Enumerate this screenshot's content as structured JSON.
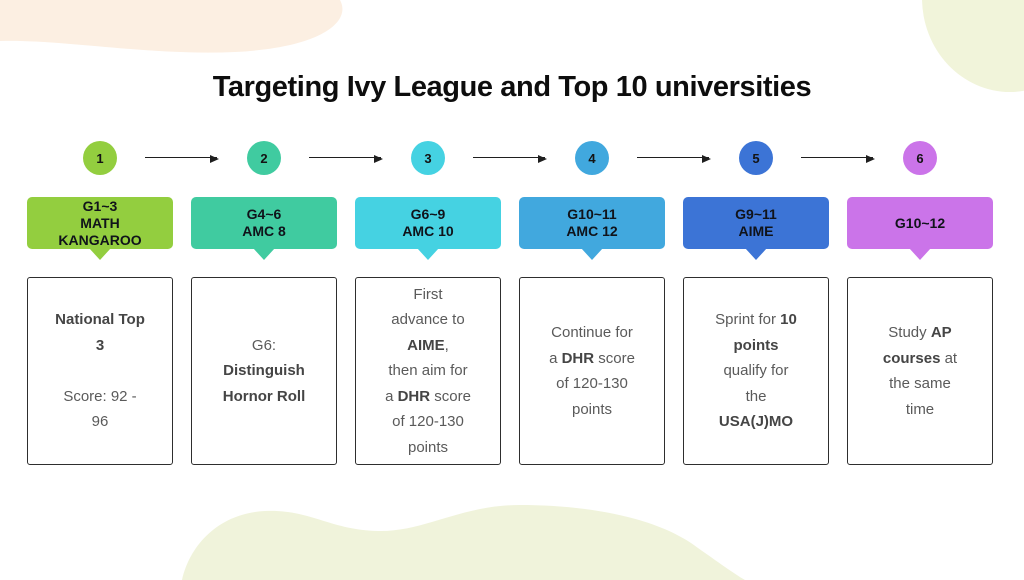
{
  "title": "Targeting Ivy League and Top 10 universities",
  "decor": {
    "blob_cream_top_left": "#FCEFE2",
    "blob_green_top_right": "#F1F4DA",
    "blob_green_bottom": "#F0F3DB"
  },
  "steps": [
    {
      "number": "1",
      "color": "#93CE3F",
      "header": "G1~3\nMATH\nKANGAROO",
      "desc": [
        {
          "t": "National Top\n3",
          "b": true
        },
        {
          "t": "\n\nScore: 92 -\n96",
          "b": false
        }
      ]
    },
    {
      "number": "2",
      "color": "#40CBA0",
      "header": "G4~6\nAMC 8",
      "desc": [
        {
          "t": "G6:\n",
          "b": false
        },
        {
          "t": "Distinguish\nHornor Roll",
          "b": true
        }
      ]
    },
    {
      "number": "3",
      "color": "#45D2E2",
      "header": "G6~9\nAMC 10",
      "desc": [
        {
          "t": "First\nadvance to\n",
          "b": false
        },
        {
          "t": "AIME",
          "b": true
        },
        {
          "t": ",\nthen aim for\na ",
          "b": false
        },
        {
          "t": "DHR",
          "b": true
        },
        {
          "t": " score\nof 120-130\npoints",
          "b": false
        }
      ]
    },
    {
      "number": "4",
      "color": "#41A8DE",
      "header": "G10~11\nAMC 12",
      "desc": [
        {
          "t": "Continue for\na ",
          "b": false
        },
        {
          "t": "DHR",
          "b": true
        },
        {
          "t": " score\nof 120-130\npoints",
          "b": false
        }
      ]
    },
    {
      "number": "5",
      "color": "#3C74D6",
      "header": "G9~11\nAIME",
      "desc": [
        {
          "t": "Sprint for ",
          "b": false
        },
        {
          "t": "10\npoints",
          "b": true
        },
        {
          "t": "\nqualify for\nthe\n",
          "b": false
        },
        {
          "t": "USA(J)MO",
          "b": true
        }
      ]
    },
    {
      "number": "6",
      "color": "#CB74E9",
      "header": "G10~12",
      "desc": [
        {
          "t": "Study ",
          "b": false
        },
        {
          "t": "AP\ncourses",
          "b": true
        },
        {
          "t": " at\nthe same\ntime",
          "b": false
        }
      ]
    }
  ]
}
